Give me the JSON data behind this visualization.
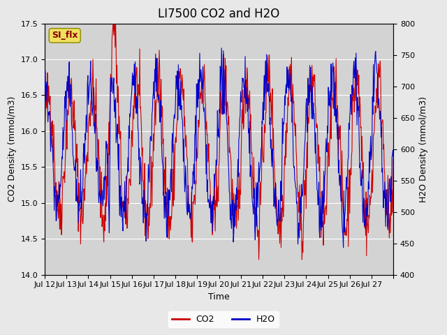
{
  "title": "LI7500 CO2 and H2O",
  "xlabel": "Time",
  "ylabel_left": "CO2 Density (mmol/m3)",
  "ylabel_right": "H2O Density (mmol/m3)",
  "ylim_left": [
    14.0,
    17.5
  ],
  "ylim_right": [
    400,
    800
  ],
  "yticks_left": [
    14.0,
    14.5,
    15.0,
    15.5,
    16.0,
    16.5,
    17.0,
    17.5
  ],
  "yticks_right": [
    400,
    450,
    500,
    550,
    600,
    650,
    700,
    750,
    800
  ],
  "xtick_positions": [
    0,
    1,
    2,
    3,
    4,
    5,
    6,
    7,
    8,
    9,
    10,
    11,
    12,
    13,
    14,
    15,
    16
  ],
  "xtick_labels": [
    "Jul 12",
    "Jul 13",
    "Jul 14",
    "Jul 15",
    "Jul 16",
    "Jul 17",
    "Jul 18",
    "Jul 19",
    "Jul 20",
    "Jul 21",
    "Jul 22",
    "Jul 23",
    "Jul 24",
    "Jul 25",
    "Jul 26",
    "Jul 27",
    ""
  ],
  "co2_color": "#cc0000",
  "h2o_color": "#0000cc",
  "bg_color": "#e8e8e8",
  "plot_bg_color": "#d3d3d3",
  "legend_co2": "CO2",
  "legend_h2o": "H2O",
  "watermark_text": "SI_flx",
  "watermark_bg": "#f0e060",
  "watermark_border": "#888800",
  "watermark_text_color": "#880000",
  "grid_color": "#ffffff",
  "title_fontsize": 12,
  "label_fontsize": 9,
  "tick_fontsize": 8
}
